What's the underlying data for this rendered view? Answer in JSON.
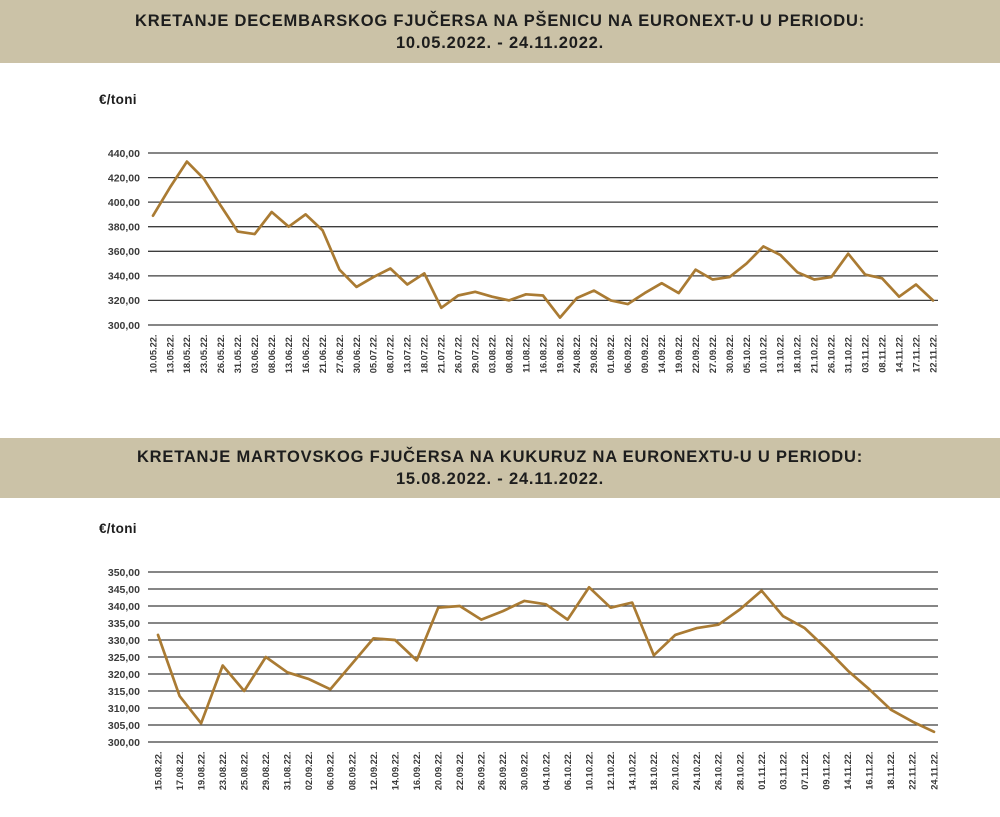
{
  "colors": {
    "page_background": "#ffffff",
    "title_band_background": "#cbc2a7",
    "title_text": "#1d1d1d",
    "line_color": "#aa7b33",
    "gridline_color": "#3d3d3d",
    "axis_text": "#3b3b3b"
  },
  "chart_data": [
    {
      "type": "line",
      "title": "KRETANJE DECEMBARSKOG FJUČERSA NA PŠENICU NA EURONEXT-U U PERIODU: 10.05.2022. - 24.11.2022.",
      "title_line1": "KRETANJE DECEMBARSKOG FJUČERSA NA PŠENICU NA EURONEXT-U U PERIODU:",
      "title_line2": "10.05.2022. - 24.11.2022.",
      "ylabel": "€/toni",
      "xlabel": "",
      "ylim": [
        300,
        440
      ],
      "ytick_step": 20,
      "ytick_labels": [
        "440,00",
        "420,00",
        "400,00",
        "380,00",
        "360,00",
        "340,00",
        "320,00",
        "300,00"
      ],
      "grid": true,
      "legend": false,
      "line_color": "#aa7b33",
      "categories": [
        "10.05.22.",
        "13.05.22.",
        "18.05.22.",
        "23.05.22.",
        "26.05.22.",
        "31.05.22.",
        "03.06.22.",
        "08.06.22.",
        "13.06.22.",
        "16.06.22.",
        "21.06.22.",
        "27.06.22.",
        "30.06.22.",
        "05.07.22.",
        "08.07.22.",
        "13.07.22.",
        "18.07.22.",
        "21.07.22.",
        "26.07.22.",
        "29.07.22.",
        "03.08.22.",
        "08.08.22.",
        "11.08.22.",
        "16.08.22.",
        "19.08.22.",
        "24.08.22.",
        "29.08.22.",
        "01.09.22.",
        "06.09.22.",
        "09.09.22.",
        "14.09.22.",
        "19.09.22.",
        "22.09.22.",
        "27.09.22.",
        "30.09.22.",
        "05.10.22.",
        "10.10.22.",
        "13.10.22.",
        "18.10.22.",
        "21.10.22.",
        "26.10.22.",
        "31.10.22.",
        "03.11.22.",
        "08.11.22.",
        "14.11.22.",
        "17.11.22.",
        "22.11.22."
      ],
      "values": [
        389,
        412,
        433,
        419,
        397,
        376,
        374,
        392,
        380,
        390,
        377,
        345,
        331,
        339,
        346,
        333,
        342,
        314,
        324,
        327,
        323,
        320,
        325,
        324,
        306,
        322,
        328,
        320,
        317,
        326,
        334,
        326,
        345,
        337,
        339,
        350,
        364,
        357,
        343,
        337,
        339,
        358,
        341,
        338,
        323,
        333,
        320
      ]
    },
    {
      "type": "line",
      "title": "KRETANJE MARTOVSKOG FJUČERSA NA KUKURUZ NA EURONEXTU-U U PERIODU: 15.08.2022. - 24.11.2022.",
      "title_line1": "KRETANJE MARTOVSKOG FJUČERSA NA KUKURUZ NA EURONEXTU-U U PERIODU:",
      "title_line2": "15.08.2022. - 24.11.2022.",
      "ylabel": "€/toni",
      "xlabel": "",
      "ylim": [
        300,
        350
      ],
      "ytick_step": 5,
      "ytick_labels": [
        "350,00",
        "345,00",
        "340,00",
        "335,00",
        "330,00",
        "325,00",
        "320,00",
        "315,00",
        "310,00",
        "305,00",
        "300,00"
      ],
      "grid": true,
      "legend": false,
      "line_color": "#aa7b33",
      "categories": [
        "15.08.22.",
        "17.08.22.",
        "19.08.22.",
        "23.08.22.",
        "25.08.22.",
        "29.08.22.",
        "31.08.22.",
        "02.09.22.",
        "06.09.22.",
        "08.09.22.",
        "12.09.22.",
        "14.09.22.",
        "16.09.22.",
        "20.09.22.",
        "22.09.22.",
        "26.09.22.",
        "28.09.22.",
        "30.09.22.",
        "04.10.22.",
        "06.10.22.",
        "10.10.22.",
        "12.10.22.",
        "14.10.22.",
        "18.10.22.",
        "20.10.22.",
        "24.10.22.",
        "26.10.22.",
        "28.10.22.",
        "01.11.22.",
        "03.11.22.",
        "07.11.22.",
        "09.11.22.",
        "14.11.22.",
        "16.11.22.",
        "18.11.22.",
        "22.11.22.",
        "24.11.22."
      ],
      "values": [
        331.5,
        313.5,
        305.5,
        322.5,
        315,
        325,
        320.5,
        318.5,
        315.5,
        323,
        330.5,
        330,
        324,
        339.5,
        340,
        336,
        338.5,
        341.5,
        340.5,
        336,
        345.5,
        339.5,
        341,
        325.5,
        331.5,
        333.5,
        334.5,
        339,
        344.5,
        337,
        333.5,
        327.5,
        321,
        315.5,
        309.5,
        306,
        303
      ]
    }
  ]
}
